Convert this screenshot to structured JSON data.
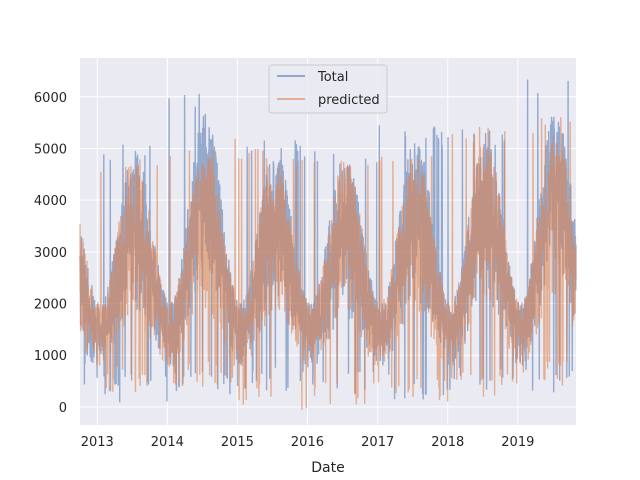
{
  "chart_data": {
    "type": "line",
    "title": "",
    "xlabel": "Date",
    "ylabel": "",
    "x_range": [
      "2012-10-03",
      "2019-10-31"
    ],
    "ylim": [
      -350,
      6750
    ],
    "x_ticks": [
      "2013",
      "2014",
      "2015",
      "2016",
      "2017",
      "2018",
      "2019"
    ],
    "y_ticks": [
      0,
      1000,
      2000,
      3000,
      4000,
      5000,
      6000
    ],
    "grid": true,
    "legend_position": "top-center",
    "series": [
      {
        "name": "Total",
        "color": "#4c72b0",
        "opacity": 0.55,
        "summer_peaks": [
          {
            "year": 2013,
            "value": 5100
          },
          {
            "year": 2014,
            "value": 6100
          },
          {
            "year": 2015,
            "value": 5150
          },
          {
            "year": 2016,
            "value": 5000
          },
          {
            "year": 2017,
            "value": 5450
          },
          {
            "year": 2018,
            "value": 5450
          },
          {
            "year": 2019,
            "value": 6400
          }
        ],
        "winter_lows": [
          {
            "year": 2013,
            "value": 100
          },
          {
            "year": 2014,
            "value": 200
          },
          {
            "year": 2015,
            "value": 300
          },
          {
            "year": 2016,
            "value": 200
          },
          {
            "year": 2017,
            "value": 150
          },
          {
            "year": 2018,
            "value": 300
          },
          {
            "year": 2019,
            "value": 250
          }
        ]
      },
      {
        "name": "predicted",
        "color": "#dd8452",
        "opacity": 0.6,
        "summer_peaks": [
          {
            "year": 2013,
            "value": 4900
          },
          {
            "year": 2014,
            "value": 5200
          },
          {
            "year": 2015,
            "value": 5000
          },
          {
            "year": 2016,
            "value": 4850
          },
          {
            "year": 2017,
            "value": 5050
          },
          {
            "year": 2018,
            "value": 5500
          },
          {
            "year": 2019,
            "value": 5650
          }
        ],
        "winter_lows": [
          {
            "year": 2013,
            "value": 300
          },
          {
            "year": 2014,
            "value": 400
          },
          {
            "year": 2015,
            "value": -50
          },
          {
            "year": 2016,
            "value": 0
          },
          {
            "year": 2017,
            "value": 100
          },
          {
            "year": 2018,
            "value": 200
          },
          {
            "year": 2019,
            "value": 400
          }
        ]
      }
    ]
  }
}
